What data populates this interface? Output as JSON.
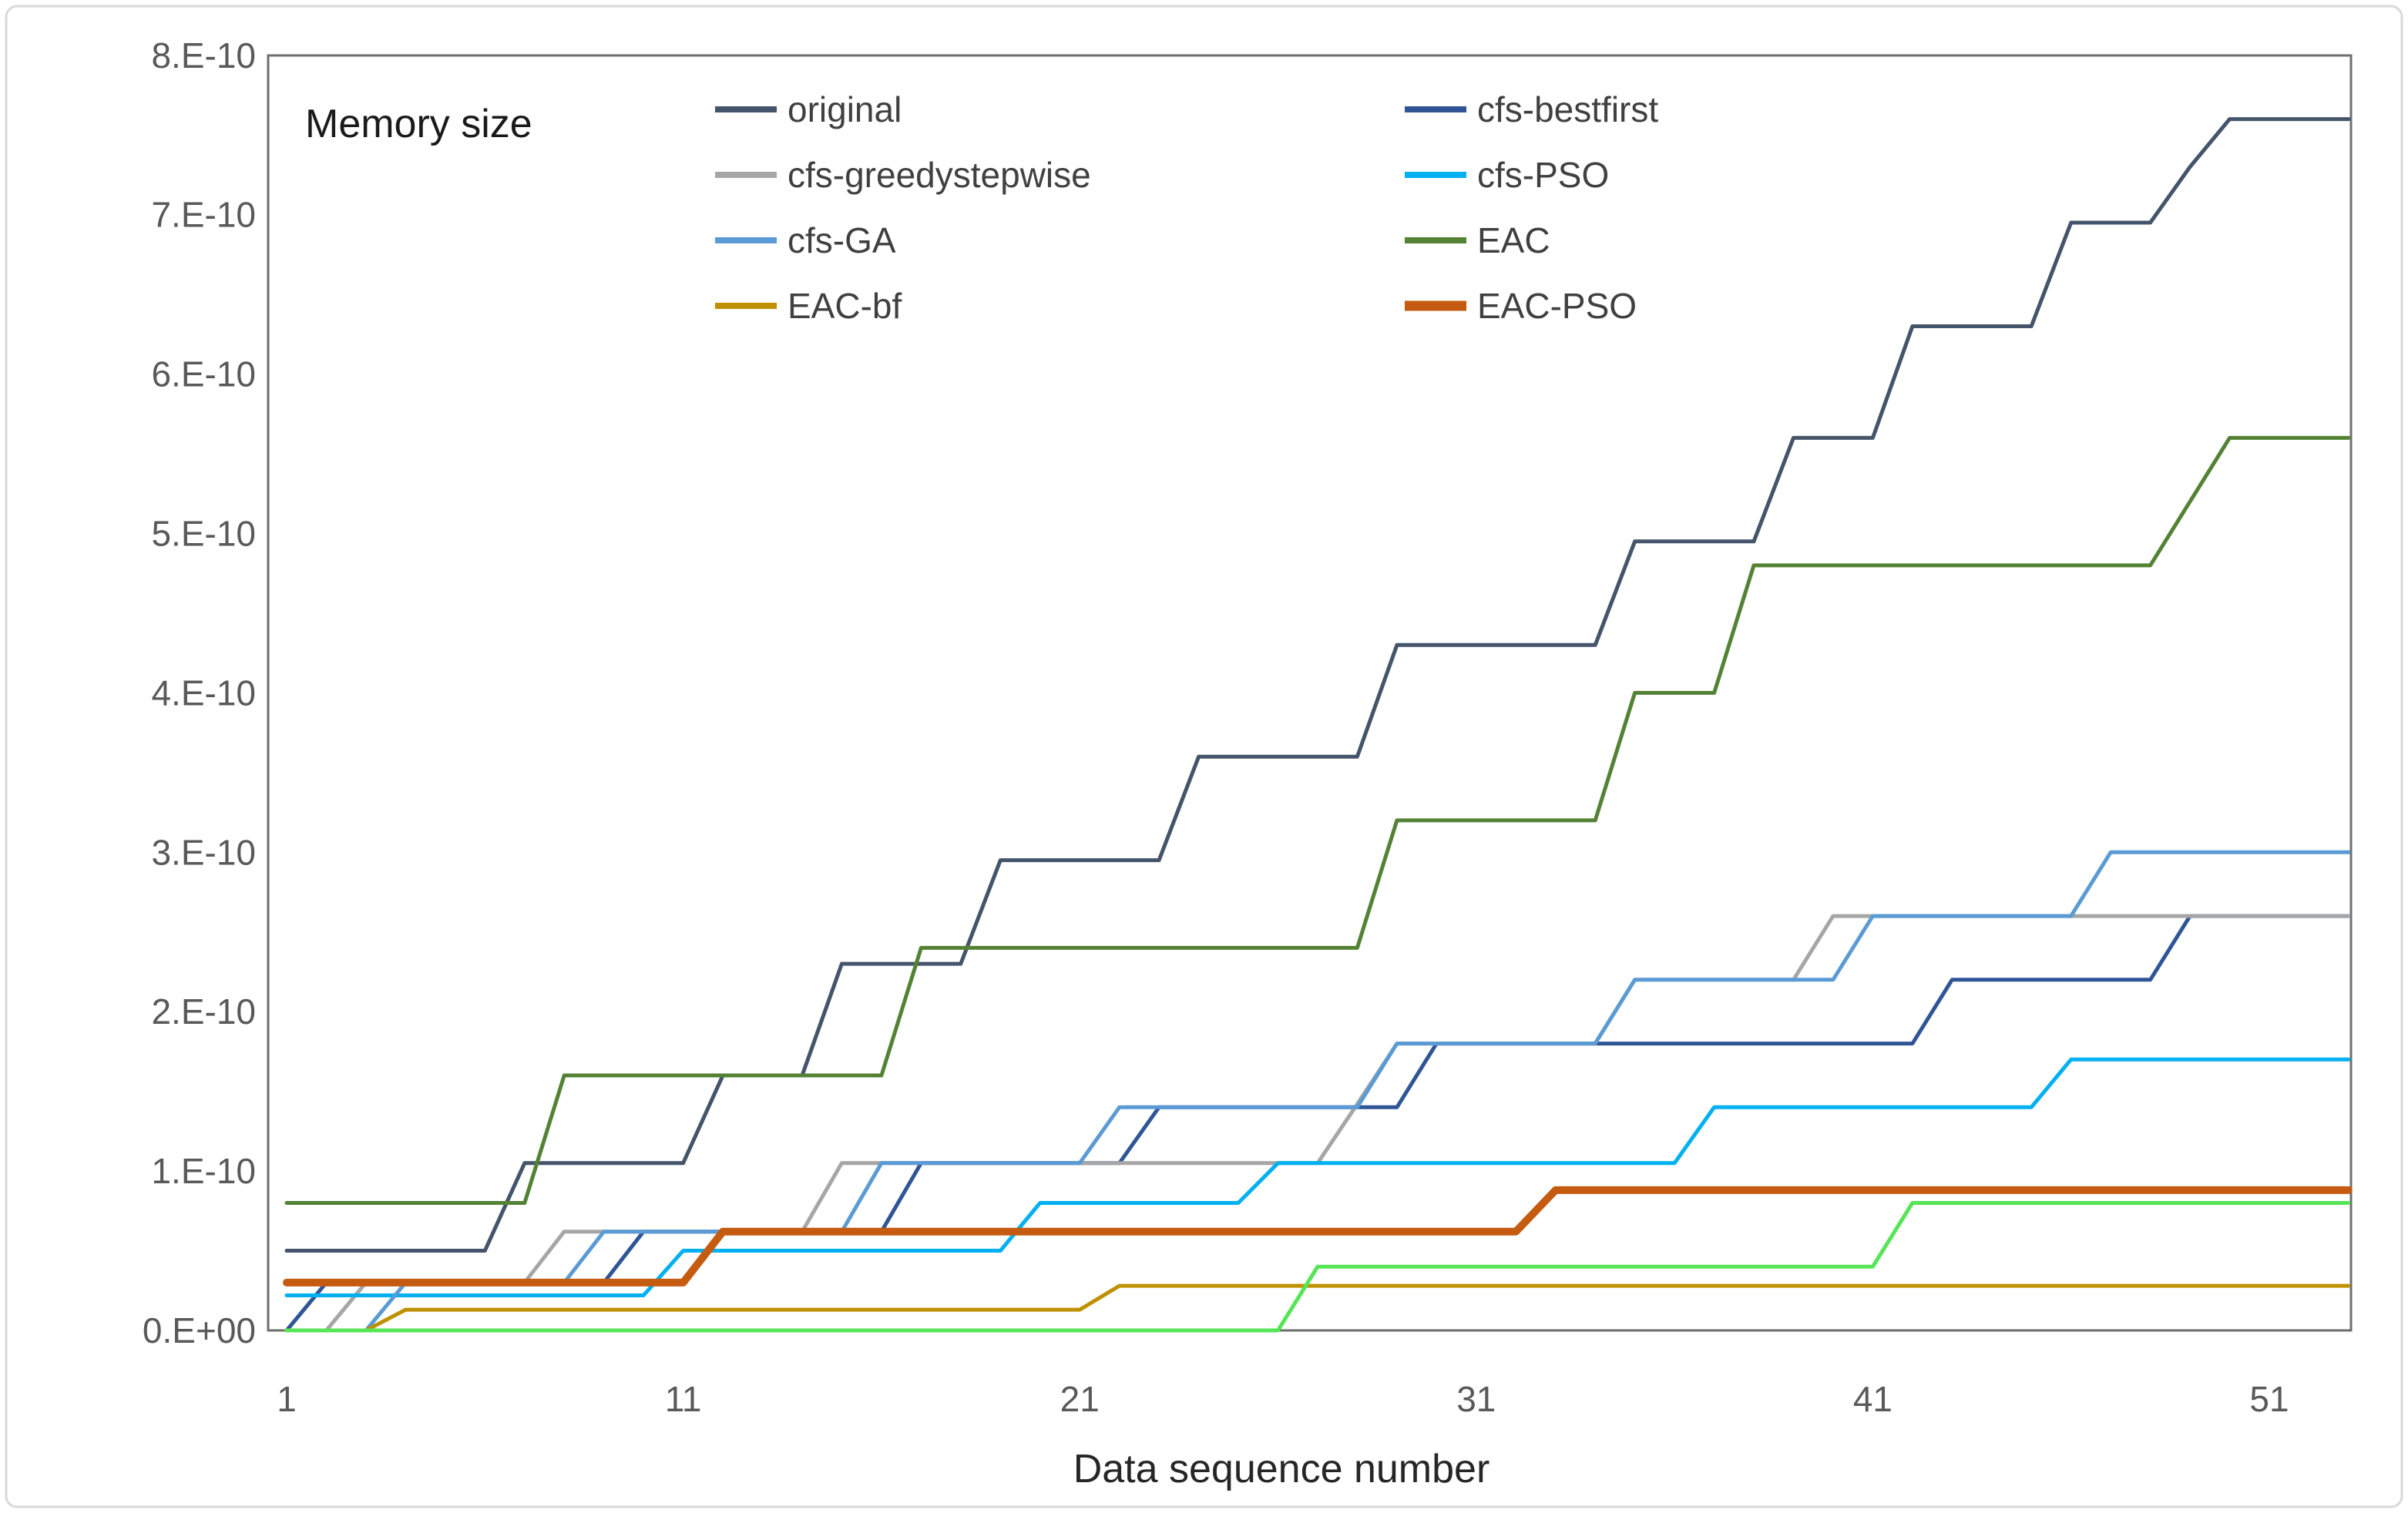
{
  "figure": {
    "title": "Memory size",
    "x_axis_title": "Data sequence number"
  },
  "axes": {
    "y_ticks": [
      "0.E+00",
      "1.E-10",
      "2.E-10",
      "3.E-10",
      "4.E-10",
      "5.E-10",
      "6.E-10",
      "7.E-10",
      "8.E-10"
    ],
    "x_ticks": [
      1,
      11,
      21,
      31,
      41,
      51
    ],
    "tick_color": "#595959",
    "plot_border_color": "#6e6e6e"
  },
  "legend": {
    "columns": [
      {
        "items": [
          {
            "label": "original",
            "series": "original"
          },
          {
            "label": "cfs-greedystepwise",
            "series": "cfs-greedystepwise"
          },
          {
            "label": "cfs-GA",
            "series": "cfs-GA"
          },
          {
            "label": "EAC-bf",
            "series": "EAC-bf"
          }
        ]
      },
      {
        "items": [
          {
            "label": "cfs-bestfirst",
            "series": "cfs-bestfirst"
          },
          {
            "label": "cfs-PSO",
            "series": "cfs-PSO"
          },
          {
            "label": "EAC",
            "series": "EAC"
          },
          {
            "label": "EAC-PSO",
            "series": "EAC-PSO"
          }
        ]
      }
    ]
  },
  "chart_data": {
    "type": "line",
    "title": "Memory size",
    "xlabel": "Data sequence number",
    "ylabel": "",
    "x_unit": "data sequence index",
    "y_unit": "bytes (1e-10 scale)",
    "ylim": [
      0,
      8e-10
    ],
    "xlim": [
      1,
      53
    ],
    "grid": false,
    "legend_position": "top-inside, two columns",
    "value_scale": 1e-10,
    "x": [
      1,
      2,
      3,
      4,
      5,
      6,
      7,
      8,
      9,
      10,
      11,
      12,
      13,
      14,
      15,
      16,
      17,
      18,
      19,
      20,
      21,
      22,
      23,
      24,
      25,
      26,
      27,
      28,
      29,
      30,
      31,
      32,
      33,
      34,
      35,
      36,
      37,
      38,
      39,
      40,
      41,
      42,
      43,
      44,
      45,
      46,
      47,
      48,
      49,
      50,
      51,
      52,
      53
    ],
    "series": [
      {
        "name": "original",
        "color": "#44546A",
        "width": 5,
        "values": [
          0.5,
          0.5,
          0.5,
          0.5,
          0.5,
          0.5,
          1.05,
          1.05,
          1.05,
          1.05,
          1.05,
          1.6,
          1.6,
          1.6,
          2.3,
          2.3,
          2.3,
          2.3,
          2.95,
          2.95,
          2.95,
          2.95,
          2.95,
          3.6,
          3.6,
          3.6,
          3.6,
          3.6,
          4.3,
          4.3,
          4.3,
          4.3,
          4.3,
          4.3,
          4.95,
          4.95,
          4.95,
          4.95,
          5.6,
          5.6,
          5.6,
          6.3,
          6.3,
          6.3,
          6.3,
          6.95,
          6.95,
          6.95,
          7.3,
          7.6,
          7.6,
          7.6,
          7.6
        ]
      },
      {
        "name": "cfs-bestfirst",
        "color": "#2F5597",
        "width": 5,
        "values": [
          0,
          0.3,
          0.3,
          0.3,
          0.3,
          0.3,
          0.3,
          0.3,
          0.3,
          0.62,
          0.62,
          0.62,
          0.62,
          0.62,
          0.62,
          0.62,
          1.05,
          1.05,
          1.05,
          1.05,
          1.05,
          1.05,
          1.4,
          1.4,
          1.4,
          1.4,
          1.4,
          1.4,
          1.4,
          1.8,
          1.8,
          1.8,
          1.8,
          1.8,
          1.8,
          1.8,
          1.8,
          1.8,
          1.8,
          1.8,
          1.8,
          1.8,
          2.2,
          2.2,
          2.2,
          2.2,
          2.2,
          2.2,
          2.6,
          2.6,
          2.6,
          2.6,
          2.6
        ]
      },
      {
        "name": "cfs-greedystepwise",
        "color": "#A6A6A6",
        "width": 5,
        "values": [
          0,
          0,
          0.3,
          0.3,
          0.3,
          0.3,
          0.3,
          0.62,
          0.62,
          0.62,
          0.62,
          0.62,
          0.62,
          0.62,
          1.05,
          1.05,
          1.05,
          1.05,
          1.05,
          1.05,
          1.05,
          1.05,
          1.05,
          1.05,
          1.05,
          1.05,
          1.05,
          1.42,
          1.8,
          1.8,
          1.8,
          1.8,
          1.8,
          1.8,
          2.2,
          2.2,
          2.2,
          2.2,
          2.2,
          2.6,
          2.6,
          2.6,
          2.6,
          2.6,
          2.6,
          2.6,
          2.6,
          2.6,
          2.6,
          2.6,
          2.6,
          2.6,
          2.6
        ]
      },
      {
        "name": "cfs-PSO",
        "color": "#00B0F0",
        "width": 5,
        "values": [
          0.22,
          0.22,
          0.22,
          0.22,
          0.22,
          0.22,
          0.22,
          0.22,
          0.22,
          0.22,
          0.5,
          0.5,
          0.5,
          0.5,
          0.5,
          0.5,
          0.5,
          0.5,
          0.5,
          0.8,
          0.8,
          0.8,
          0.8,
          0.8,
          0.8,
          1.05,
          1.05,
          1.05,
          1.05,
          1.05,
          1.05,
          1.05,
          1.05,
          1.05,
          1.05,
          1.05,
          1.4,
          1.4,
          1.4,
          1.4,
          1.4,
          1.4,
          1.4,
          1.4,
          1.4,
          1.7,
          1.7,
          1.7,
          1.7,
          1.7,
          1.7,
          1.7,
          1.7
        ]
      },
      {
        "name": "cfs-GA",
        "color": "#5B9BD5",
        "width": 5,
        "values": [
          0,
          0,
          0,
          0.3,
          0.3,
          0.3,
          0.3,
          0.3,
          0.62,
          0.62,
          0.62,
          0.62,
          0.62,
          0.62,
          0.62,
          1.05,
          1.05,
          1.05,
          1.05,
          1.05,
          1.05,
          1.4,
          1.4,
          1.4,
          1.4,
          1.4,
          1.4,
          1.4,
          1.8,
          1.8,
          1.8,
          1.8,
          1.8,
          1.8,
          2.2,
          2.2,
          2.2,
          2.2,
          2.2,
          2.2,
          2.6,
          2.6,
          2.6,
          2.6,
          2.6,
          2.6,
          3.0,
          3.0,
          3.0,
          3.0,
          3.0,
          3.0,
          3.0
        ]
      },
      {
        "name": "EAC",
        "color": "#548235",
        "width": 5,
        "values": [
          0.8,
          0.8,
          0.8,
          0.8,
          0.8,
          0.8,
          0.8,
          1.6,
          1.6,
          1.6,
          1.6,
          1.6,
          1.6,
          1.6,
          1.6,
          1.6,
          2.4,
          2.4,
          2.4,
          2.4,
          2.4,
          2.4,
          2.4,
          2.4,
          2.4,
          2.4,
          2.4,
          2.4,
          3.2,
          3.2,
          3.2,
          3.2,
          3.2,
          3.2,
          4.0,
          4.0,
          4.0,
          4.8,
          4.8,
          4.8,
          4.8,
          4.8,
          4.8,
          4.8,
          4.8,
          4.8,
          4.8,
          4.8,
          5.2,
          5.6,
          5.6,
          5.6,
          5.6
        ]
      },
      {
        "name": "EAC-bf",
        "color": "#BF9000",
        "width": 5,
        "values": [
          0,
          0,
          0,
          0.13,
          0.13,
          0.13,
          0.13,
          0.13,
          0.13,
          0.13,
          0.13,
          0.13,
          0.13,
          0.13,
          0.13,
          0.13,
          0.13,
          0.13,
          0.13,
          0.13,
          0.13,
          0.28,
          0.28,
          0.28,
          0.28,
          0.28,
          0.28,
          0.28,
          0.28,
          0.28,
          0.28,
          0.28,
          0.28,
          0.28,
          0.28,
          0.28,
          0.28,
          0.28,
          0.28,
          0.28,
          0.28,
          0.28,
          0.28,
          0.28,
          0.28,
          0.28,
          0.28,
          0.28,
          0.28,
          0.28,
          0.28,
          0.28,
          0.28
        ]
      },
      {
        "name": "EAC-PSO",
        "color": "#C55A11",
        "width": 10,
        "values": [
          0.3,
          0.3,
          0.3,
          0.3,
          0.3,
          0.3,
          0.3,
          0.3,
          0.3,
          0.3,
          0.3,
          0.62,
          0.62,
          0.62,
          0.62,
          0.62,
          0.62,
          0.62,
          0.62,
          0.62,
          0.62,
          0.62,
          0.62,
          0.62,
          0.62,
          0.62,
          0.62,
          0.62,
          0.62,
          0.62,
          0.62,
          0.62,
          0.88,
          0.88,
          0.88,
          0.88,
          0.88,
          0.88,
          0.88,
          0.88,
          0.88,
          0.88,
          0.88,
          0.88,
          0.88,
          0.88,
          0.88,
          0.88,
          0.88,
          0.88,
          0.88,
          0.88,
          0.88
        ]
      },
      {
        "name": "(unlabeled)",
        "color": "#55E555",
        "width": 5,
        "values": [
          0,
          0,
          0,
          0,
          0,
          0,
          0,
          0,
          0,
          0,
          0,
          0,
          0,
          0,
          0,
          0,
          0,
          0,
          0,
          0,
          0,
          0,
          0,
          0,
          0,
          0,
          0.4,
          0.4,
          0.4,
          0.4,
          0.4,
          0.4,
          0.4,
          0.4,
          0.4,
          0.4,
          0.4,
          0.4,
          0.4,
          0.4,
          0.4,
          0.8,
          0.8,
          0.8,
          0.8,
          0.8,
          0.8,
          0.8,
          0.8,
          0.8,
          0.8,
          0.8,
          0.8
        ]
      }
    ]
  }
}
